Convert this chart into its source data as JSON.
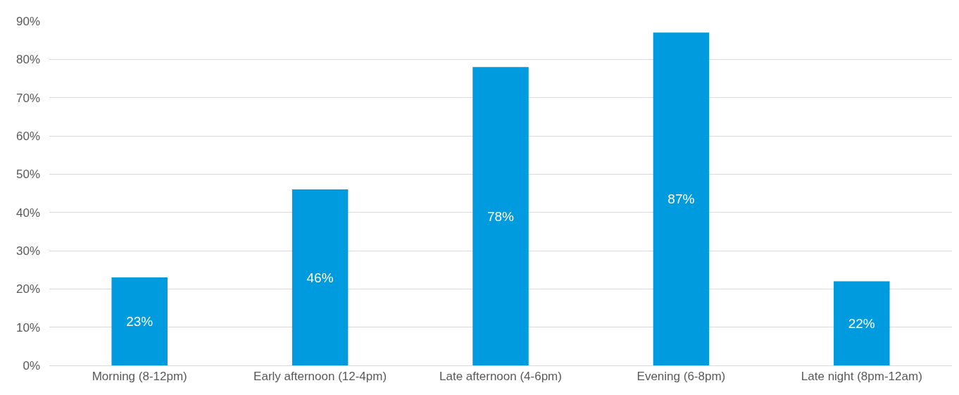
{
  "chart_data": {
    "type": "bar",
    "categories": [
      "Morning (8-12pm)",
      "Early afternoon (12-4pm)",
      "Late afternoon (4-6pm)",
      "Evening (6-8pm)",
      "Late night (8pm-12am)"
    ],
    "values": [
      23,
      46,
      78,
      87,
      22
    ],
    "value_labels": [
      "23%",
      "46%",
      "78%",
      "87%",
      "22%"
    ],
    "color": "#009ade",
    "ylim": [
      0,
      90
    ],
    "yticks": [
      {
        "value": 0,
        "label": "0%"
      },
      {
        "value": 10,
        "label": "10%"
      },
      {
        "value": 20,
        "label": "20%"
      },
      {
        "value": 30,
        "label": "30%"
      },
      {
        "value": 40,
        "label": "40%"
      },
      {
        "value": 50,
        "label": "50%"
      },
      {
        "value": 60,
        "label": "60%"
      },
      {
        "value": 70,
        "label": "70%"
      },
      {
        "value": 80,
        "label": "80%"
      },
      {
        "value": 90,
        "label": "90%"
      }
    ],
    "grid": "y"
  }
}
